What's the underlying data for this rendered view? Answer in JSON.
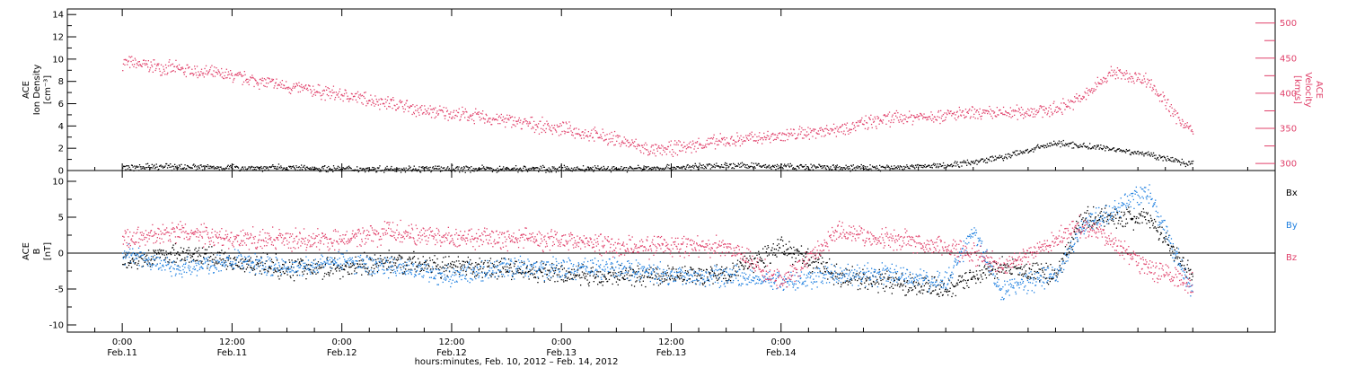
{
  "chart_data": [
    {
      "type": "scatter",
      "instrument": "ACE",
      "ylabel": "Ion Density",
      "yunit": "[cm⁻³]",
      "ylim": [
        0,
        14.5
      ],
      "yticks": [
        0,
        2,
        4,
        6,
        8,
        10,
        12,
        14
      ],
      "right_axis": {
        "instrument": "ACE",
        "label": "Velocity",
        "unit": "[km/s]",
        "ylim": [
          290,
          520
        ],
        "yticks": [
          300,
          350,
          400,
          450,
          500
        ],
        "color": "#e0406a"
      },
      "series": [
        {
          "name": "",
          "axis": "left",
          "color": "#000000",
          "x": [
            0,
            6,
            12,
            18,
            24,
            30,
            36,
            42,
            48,
            54,
            60,
            66,
            72,
            78,
            84,
            90,
            96,
            102,
            108,
            112,
            117
          ],
          "y": [
            0.3,
            0.4,
            0.3,
            0.3,
            0.2,
            0.2,
            0.2,
            0.2,
            0.2,
            0.2,
            0.3,
            0.5,
            0.4,
            0.3,
            0.3,
            0.5,
            1.2,
            2.5,
            2.0,
            1.5,
            0.6
          ]
        },
        {
          "name": "",
          "axis": "right",
          "color": "#e0406a",
          "x": [
            0,
            6,
            12,
            18,
            24,
            30,
            33,
            36,
            42,
            48,
            54,
            58,
            60,
            66,
            72,
            78,
            84,
            90,
            96,
            102,
            105,
            108,
            112,
            115,
            117
          ],
          "y": [
            445,
            435,
            425,
            410,
            398,
            385,
            375,
            372,
            362,
            350,
            335,
            318,
            322,
            333,
            340,
            350,
            365,
            370,
            372,
            378,
            395,
            430,
            420,
            370,
            345
          ]
        }
      ]
    },
    {
      "type": "scatter",
      "instrument": "ACE",
      "ylabel": "B",
      "yunit": "[nT]",
      "ylim": [
        -11,
        11.5
      ],
      "yticks": [
        -10,
        -5,
        0,
        5,
        10
      ],
      "zero_line": true,
      "series": [
        {
          "name": "Bx",
          "color": "#000000",
          "x": [
            0,
            6,
            12,
            18,
            24,
            30,
            36,
            42,
            48,
            54,
            60,
            66,
            72,
            78,
            84,
            90,
            93,
            96,
            102,
            105,
            108,
            112,
            117
          ],
          "y": [
            -1,
            0,
            -1,
            -2,
            -2,
            -1,
            -2,
            -2,
            -3,
            -3,
            -3,
            -3,
            1,
            -3,
            -4,
            -5,
            -3,
            -2,
            -3,
            5,
            5,
            5,
            -3
          ]
        },
        {
          "name": "By",
          "color": "#2080e0",
          "x": [
            0,
            6,
            12,
            18,
            24,
            30,
            36,
            42,
            48,
            54,
            60,
            66,
            72,
            78,
            84,
            90,
            93,
            96,
            102,
            105,
            108,
            112,
            117
          ],
          "y": [
            0,
            -2,
            -1,
            -2,
            -1,
            -2,
            -3,
            -2,
            -2,
            -2,
            -3,
            -3,
            -4,
            -3,
            -3,
            -4,
            3,
            -5,
            -3,
            4,
            6,
            9,
            -6
          ]
        },
        {
          "name": "Bz",
          "color": "#e0406a",
          "x": [
            0,
            6,
            12,
            18,
            24,
            30,
            36,
            42,
            48,
            54,
            60,
            66,
            72,
            78,
            84,
            90,
            93,
            96,
            102,
            105,
            108,
            112,
            117
          ],
          "y": [
            2,
            3,
            2,
            2,
            2,
            3,
            2,
            2,
            2,
            1,
            1,
            1,
            -4,
            3,
            2,
            1,
            0,
            -2,
            2,
            4,
            2,
            -2,
            -4
          ]
        }
      ]
    }
  ],
  "time_axis": {
    "xlim": [
      -6,
      126
    ],
    "ticks": [
      {
        "x": 0,
        "time": "0:00",
        "date": "Feb.11"
      },
      {
        "x": 12,
        "time": "12:00",
        "date": "Feb.11"
      },
      {
        "x": 24,
        "time": "0:00",
        "date": "Feb.12"
      },
      {
        "x": 36,
        "time": "12:00",
        "date": "Feb.12"
      },
      {
        "x": 48,
        "time": "0:00",
        "date": "Feb.13"
      },
      {
        "x": 60,
        "time": "12:00",
        "date": "Feb.13"
      },
      {
        "x": 72,
        "time": "0:00",
        "date": "Feb.14"
      }
    ],
    "xlabel": "hours:minutes, Feb. 10, 2012 – Feb. 14, 2012"
  }
}
